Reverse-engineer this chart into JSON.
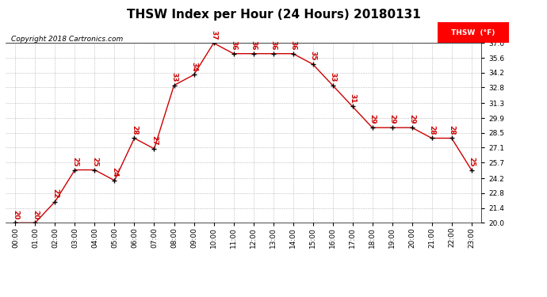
{
  "title": "THSW Index per Hour (24 Hours) 20180131",
  "copyright": "Copyright 2018 Cartronics.com",
  "legend_label": "THSW  (°F)",
  "hours": [
    0,
    1,
    2,
    3,
    4,
    5,
    6,
    7,
    8,
    9,
    10,
    11,
    12,
    13,
    14,
    15,
    16,
    17,
    18,
    19,
    20,
    21,
    22,
    23
  ],
  "values": [
    20,
    20,
    22,
    25,
    25,
    24,
    28,
    27,
    33,
    34,
    37,
    36,
    36,
    36,
    36,
    35,
    33,
    31,
    29,
    29,
    29,
    28,
    28,
    25
  ],
  "hour_labels": [
    "00:00",
    "01:00",
    "02:00",
    "03:00",
    "04:00",
    "05:00",
    "06:00",
    "07:00",
    "08:00",
    "09:00",
    "10:00",
    "11:00",
    "12:00",
    "13:00",
    "14:00",
    "15:00",
    "16:00",
    "17:00",
    "18:00",
    "19:00",
    "20:00",
    "21:00",
    "22:00",
    "23:00"
  ],
  "ylim": [
    20.0,
    37.0
  ],
  "yticks": [
    20.0,
    21.4,
    22.8,
    24.2,
    25.7,
    27.1,
    28.5,
    29.9,
    31.3,
    32.8,
    34.2,
    35.6,
    37.0
  ],
  "line_color": "#cc0000",
  "marker_color": "#000000",
  "label_color": "#cc0000",
  "background_color": "#ffffff",
  "grid_color": "#bbbbbb",
  "title_fontsize": 11,
  "label_fontsize": 6.5,
  "tick_fontsize": 6.5,
  "copyright_fontsize": 6.5
}
